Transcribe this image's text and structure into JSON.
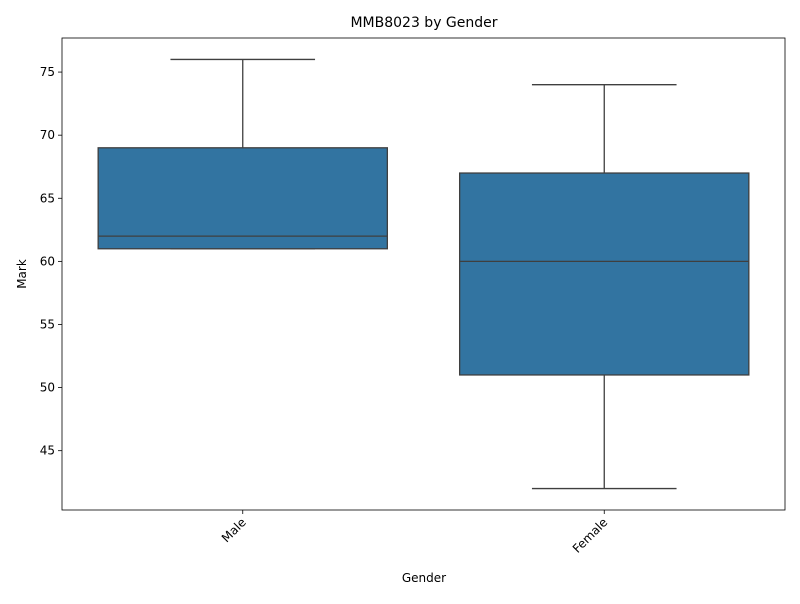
{
  "chart_data": {
    "type": "box",
    "title": "MMB8023 by Gender",
    "xlabel": "Gender",
    "ylabel": "Mark",
    "categories": [
      "Male",
      "Female"
    ],
    "boxes": [
      {
        "category": "Male",
        "whislo": 61,
        "q1": 61,
        "median": 62,
        "q3": 69,
        "whishi": 76
      },
      {
        "category": "Female",
        "whislo": 42,
        "q1": 51,
        "median": 60,
        "q3": 67,
        "whishi": 74
      }
    ],
    "ylim": [
      40.3,
      77.7
    ],
    "yticks": [
      45,
      50,
      55,
      60,
      65,
      70,
      75
    ],
    "grid": false,
    "box_color": "#3274a1",
    "line_color": "#3f3f3f"
  }
}
